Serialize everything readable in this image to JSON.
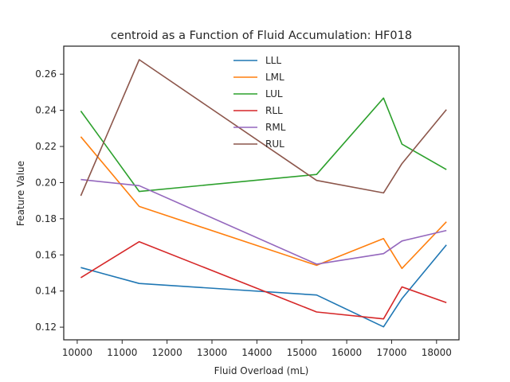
{
  "chart_data": {
    "type": "line",
    "title": "centroid as a Function of Fluid Accumulation: HF018",
    "xlabel": "Fluid Overload (mL)",
    "ylabel": "Feature Value",
    "xlim": [
      9700,
      18500
    ],
    "ylim": [
      0.113,
      0.2755
    ],
    "xticks": [
      10000,
      11000,
      12000,
      13000,
      14000,
      15000,
      16000,
      17000,
      18000
    ],
    "yticks": [
      0.12,
      0.14,
      0.16,
      0.18,
      0.2,
      0.22,
      0.24,
      0.26
    ],
    "ytick_labels": [
      "0.12",
      "0.14",
      "0.16",
      "0.18",
      "0.20",
      "0.22",
      "0.24",
      "0.26"
    ],
    "x": [
      10080,
      11380,
      15330,
      16820,
      17230,
      18220
    ],
    "series": [
      {
        "name": "LLL",
        "color": "#1f77b4",
        "values": [
          0.153,
          0.1442,
          0.1378,
          0.1202,
          0.1358,
          0.1655
        ]
      },
      {
        "name": "LML",
        "color": "#ff7f0e",
        "values": [
          0.2254,
          0.1868,
          0.1542,
          0.169,
          0.1525,
          0.1783
        ]
      },
      {
        "name": "LUL",
        "color": "#2ca02c",
        "values": [
          0.2396,
          0.1951,
          0.2045,
          0.2468,
          0.2213,
          0.2072
        ]
      },
      {
        "name": "RLL",
        "color": "#d62728",
        "values": [
          0.1474,
          0.1673,
          0.1284,
          0.1246,
          0.1423,
          0.1336
        ]
      },
      {
        "name": "RML",
        "color": "#9467bd",
        "values": [
          0.2017,
          0.1983,
          0.1549,
          0.1607,
          0.1677,
          0.1735
        ]
      },
      {
        "name": "RUL",
        "color": "#8c564b",
        "values": [
          0.1927,
          0.268,
          0.2012,
          0.1943,
          0.2105,
          0.2404
        ]
      }
    ],
    "grid": false,
    "legend_position": "top-center"
  }
}
